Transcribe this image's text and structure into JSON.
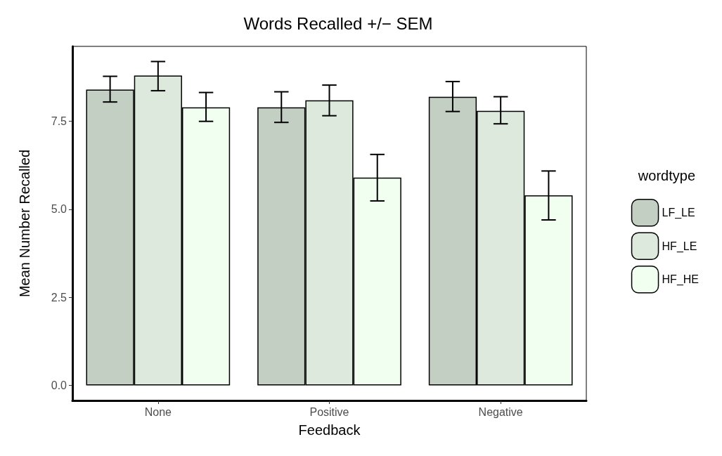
{
  "chart_data": {
    "type": "bar",
    "title": "Words Recalled +/− SEM",
    "xlabel": "Feedback",
    "ylabel": "Mean Number Recalled",
    "legend_title": "wordtype",
    "categories": [
      "None",
      "Positive",
      "Negative"
    ],
    "series": [
      {
        "name": "LF_LE",
        "color": "#c3cfc3",
        "values": [
          8.4,
          7.9,
          8.2
        ],
        "errors": [
          [
            8.05,
            8.78
          ],
          [
            7.47,
            8.34
          ],
          [
            7.78,
            8.63
          ]
        ]
      },
      {
        "name": "HF_LE",
        "color": "#dde9dd",
        "values": [
          8.8,
          8.1,
          7.8
        ],
        "errors": [
          [
            8.37,
            9.2
          ],
          [
            7.66,
            8.53
          ],
          [
            7.43,
            8.2
          ]
        ]
      },
      {
        "name": "HF_HE",
        "color": "#f0fff0",
        "values": [
          7.9,
          5.9,
          5.4
        ],
        "errors": [
          [
            7.5,
            8.32
          ],
          [
            5.24,
            6.56
          ],
          [
            4.7,
            6.09
          ]
        ]
      }
    ],
    "ylim": [
      -0.43,
      9.63
    ],
    "yticks": [
      {
        "value": 0,
        "label": "0.0"
      },
      {
        "value": 2.5,
        "label": "2.5"
      },
      {
        "value": 5,
        "label": "5.0"
      },
      {
        "value": 7.5,
        "label": "7.5"
      }
    ],
    "grid": false,
    "legend": "right"
  }
}
